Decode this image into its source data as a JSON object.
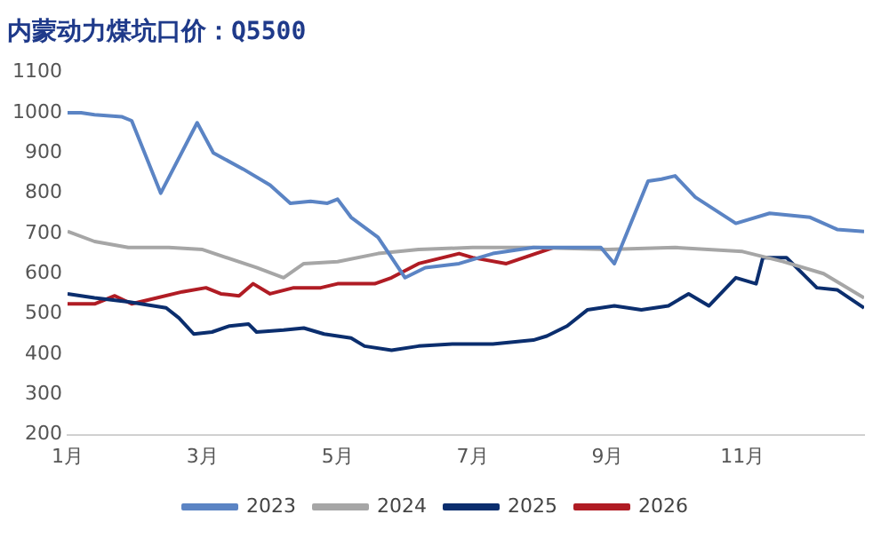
{
  "chart_data": {
    "type": "line",
    "title": "内蒙动力煤坑口价：Q5500",
    "xlim": [
      1,
      12.8
    ],
    "xticks": [
      {
        "value": 1,
        "label": "1月"
      },
      {
        "value": 3,
        "label": "3月"
      },
      {
        "value": 5,
        "label": "5月"
      },
      {
        "value": 7,
        "label": "7月"
      },
      {
        "value": 9,
        "label": "9月"
      },
      {
        "value": 11,
        "label": "11月"
      }
    ],
    "ylim": [
      200,
      1100
    ],
    "yticks": [
      200,
      300,
      400,
      500,
      600,
      700,
      800,
      900,
      1000,
      1100
    ],
    "grid": false,
    "legend": "bottom",
    "marker": "none",
    "line_style": "solid",
    "series": [
      {
        "name": "2023",
        "color": "#5b84c4",
        "x": [
          1,
          1.2,
          1.4,
          1.8,
          1.95,
          2.38,
          2.92,
          3.16,
          3.6,
          4.0,
          4.3,
          4.6,
          4.85,
          5.0,
          5.2,
          5.6,
          6.0,
          6.3,
          6.8,
          7.3,
          7.9,
          8.9,
          9.1,
          9.6,
          9.8,
          10.0,
          10.3,
          10.9,
          11.4,
          12.0,
          12.4,
          12.8
        ],
        "values": [
          1000,
          1000,
          995,
          990,
          980,
          800,
          975,
          900,
          860,
          820,
          775,
          780,
          775,
          785,
          740,
          690,
          590,
          615,
          625,
          650,
          665,
          665,
          625,
          830,
          835,
          843,
          790,
          725,
          750,
          740,
          710,
          705
        ]
      },
      {
        "name": "2024",
        "color": "#a6a6a6",
        "x": [
          1,
          1.4,
          1.9,
          2.5,
          3.0,
          3.8,
          4.2,
          4.5,
          5.0,
          5.6,
          6.2,
          7.0,
          7.9,
          9.0,
          10.0,
          11.0,
          11.6,
          12.2,
          12.8
        ],
        "values": [
          705,
          680,
          665,
          665,
          660,
          615,
          590,
          625,
          630,
          650,
          660,
          665,
          665,
          660,
          665,
          655,
          630,
          600,
          540
        ]
      },
      {
        "name": "2025",
        "color": "#0b2e6e",
        "x": [
          1,
          1.4,
          1.9,
          2.46,
          2.65,
          2.87,
          3.14,
          3.4,
          3.68,
          3.8,
          4.2,
          4.5,
          4.8,
          5.2,
          5.4,
          5.8,
          6.2,
          6.7,
          7.3,
          7.9,
          8.1,
          8.4,
          8.7,
          9.1,
          9.5,
          9.9,
          10.2,
          10.5,
          10.9,
          11.2,
          11.3,
          11.65,
          12.1,
          12.4,
          12.8
        ],
        "values": [
          550,
          540,
          530,
          515,
          490,
          450,
          455,
          470,
          475,
          455,
          460,
          465,
          450,
          440,
          420,
          410,
          420,
          425,
          425,
          435,
          445,
          470,
          510,
          520,
          510,
          520,
          550,
          520,
          590,
          575,
          640,
          640,
          565,
          560,
          515
        ]
      },
      {
        "name": "2026",
        "color": "#b01c24",
        "x": [
          1,
          1.4,
          1.7,
          1.95,
          2.2,
          2.7,
          3.05,
          3.27,
          3.54,
          3.75,
          4.0,
          4.35,
          4.75,
          5.0,
          5.55,
          5.8,
          6.2,
          6.8,
          7.0,
          7.5,
          8.2
        ],
        "values": [
          525,
          525,
          545,
          525,
          535,
          555,
          565,
          550,
          545,
          575,
          550,
          565,
          565,
          575,
          575,
          590,
          625,
          650,
          640,
          625,
          665
        ]
      }
    ]
  }
}
